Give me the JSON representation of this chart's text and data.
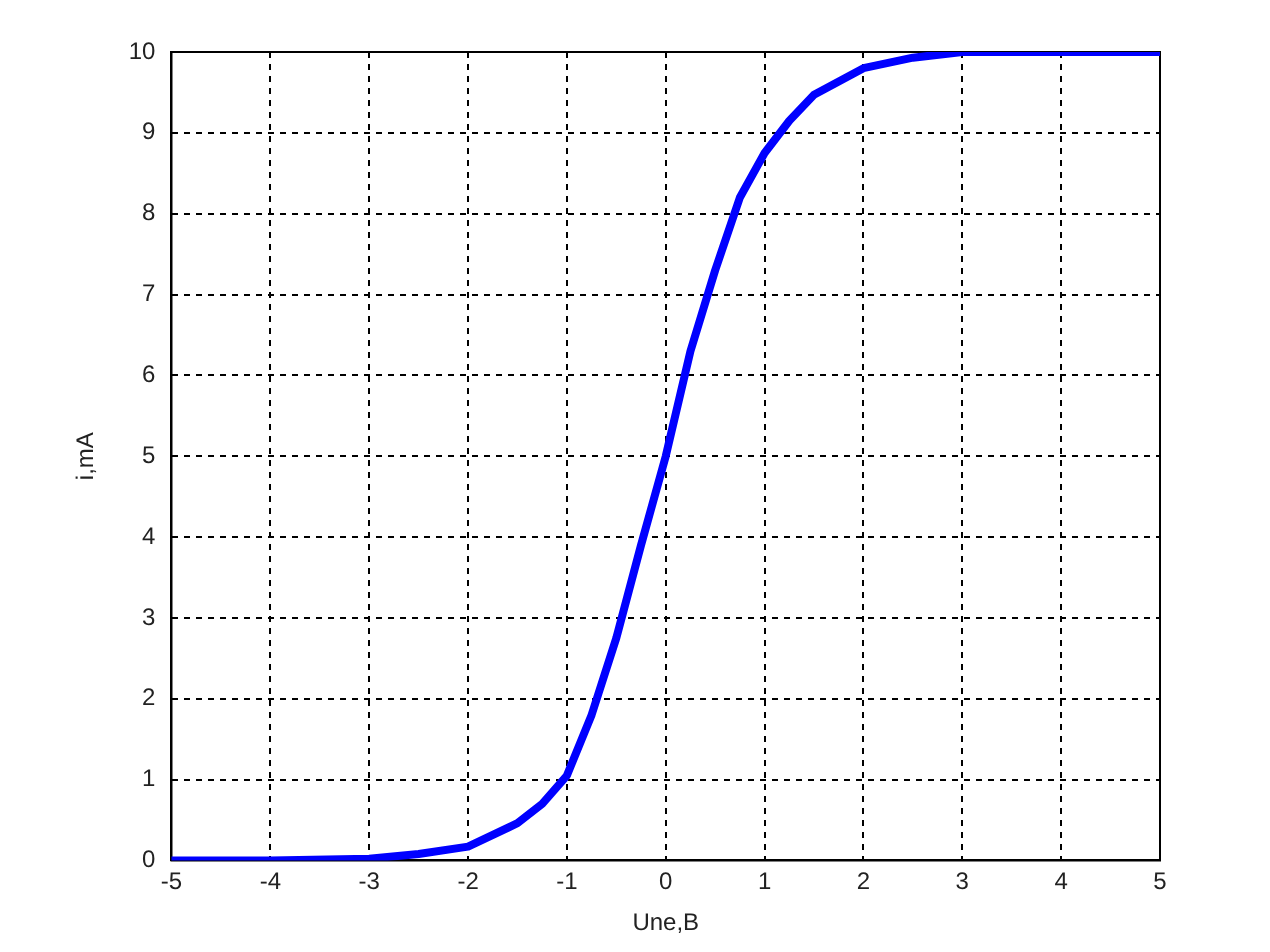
{
  "chart_data": {
    "type": "line",
    "xlabel": "Une,B",
    "ylabel": "i,mA",
    "x": [
      -5,
      -4,
      -3,
      -2.5,
      -2,
      -1.5,
      -1.25,
      -1,
      -0.75,
      -0.5,
      -0.25,
      0,
      0.25,
      0.5,
      0.75,
      1,
      1.25,
      1.5,
      2,
      2.5,
      3,
      4,
      5
    ],
    "series": [
      {
        "color": "#0000ff",
        "values": [
          0,
          0,
          0.02,
          0.08,
          0.17,
          0.46,
          0.7,
          1.05,
          1.8,
          2.75,
          3.9,
          5,
          6.3,
          7.3,
          8.2,
          8.75,
          9.15,
          9.47,
          9.8,
          9.93,
          10,
          10,
          10
        ]
      }
    ],
    "xlim": [
      -5,
      5
    ],
    "ylim": [
      0,
      10
    ],
    "xticks": [
      -5,
      -4,
      -3,
      -2,
      -1,
      0,
      1,
      2,
      3,
      4,
      5
    ],
    "yticks": [
      0,
      1,
      2,
      3,
      4,
      5,
      6,
      7,
      8,
      9,
      10
    ],
    "grid": true,
    "legend": false,
    "marker": "none",
    "line_style": "solid"
  }
}
